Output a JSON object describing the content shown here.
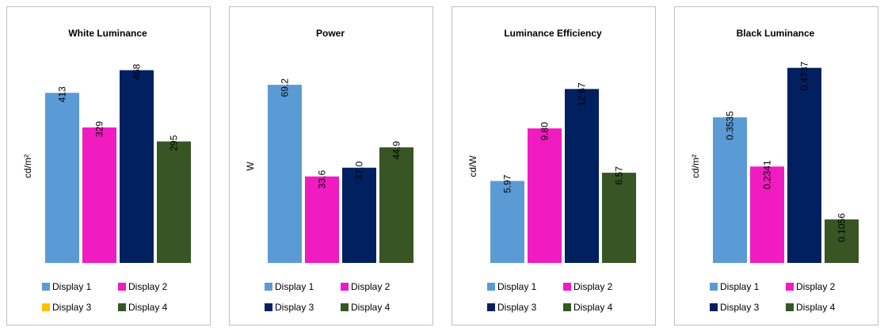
{
  "chart_data": [
    {
      "type": "bar",
      "title": "White Luminance",
      "ylabel": "cd/m²",
      "ylim": [
        0,
        500
      ],
      "series": [
        {
          "name": "Display 1",
          "color": "#5b9bd5",
          "values": [
            413
          ]
        },
        {
          "name": "Display 2",
          "color": "#f01bc1",
          "values": [
            329
          ]
        },
        {
          "name": "Display 3",
          "color": "#002060",
          "legend_color": "#ffc000",
          "values": [
            468
          ]
        },
        {
          "name": "Display 4",
          "color": "#375623",
          "values": [
            295
          ]
        }
      ]
    },
    {
      "type": "bar",
      "title": "Power",
      "ylabel": "W",
      "ylim": [
        0,
        80
      ],
      "series": [
        {
          "name": "Display 1",
          "color": "#5b9bd5",
          "values": [
            69.2
          ]
        },
        {
          "name": "Display 2",
          "color": "#f01bc1",
          "values": [
            33.6
          ]
        },
        {
          "name": "Display 3",
          "color": "#002060",
          "values": [
            37
          ],
          "value_labels": [
            "37.0"
          ]
        },
        {
          "name": "Display 4",
          "color": "#375623",
          "values": [
            44.9
          ]
        }
      ]
    },
    {
      "type": "bar",
      "title": "Luminance Efficiency",
      "ylabel": "cd/W",
      "ylim": [
        0,
        15
      ],
      "series": [
        {
          "name": "Display 1",
          "color": "#5b9bd5",
          "values": [
            5.97
          ]
        },
        {
          "name": "Display 2",
          "color": "#f01bc1",
          "values": [
            9.8
          ],
          "value_labels": [
            "9.80"
          ]
        },
        {
          "name": "Display 3",
          "color": "#002060",
          "values": [
            12.67
          ]
        },
        {
          "name": "Display 4",
          "color": "#375623",
          "values": [
            6.57
          ]
        }
      ]
    },
    {
      "type": "bar",
      "title": "Black Luminance",
      "ylabel": "cd/m²",
      "ylim": [
        0,
        0.5
      ],
      "series": [
        {
          "name": "Display 1",
          "color": "#5b9bd5",
          "values": [
            0.3535
          ]
        },
        {
          "name": "Display 2",
          "color": "#f01bc1",
          "values": [
            0.2341
          ]
        },
        {
          "name": "Display 3",
          "color": "#002060",
          "values": [
            0.4737
          ]
        },
        {
          "name": "Display 4",
          "color": "#375623",
          "values": [
            0.1056
          ]
        }
      ]
    }
  ]
}
